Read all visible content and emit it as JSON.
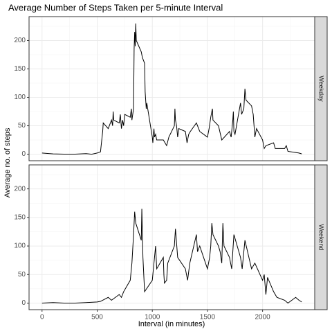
{
  "chart_data": {
    "type": "line",
    "facet": true,
    "title": "Average Number of Steps Taken per 5-minute Interval",
    "xlabel": "Interval (in minutes)",
    "ylabel": "Average no. of steps",
    "xlim": [
      -117.75,
      2472.75
    ],
    "xticks": [
      0,
      500,
      1000,
      1500,
      2000
    ],
    "xminor": [
      250,
      750,
      1250,
      1750,
      2250
    ],
    "ylim": [
      -11.5,
      242
    ],
    "yticks": [
      0,
      50,
      100,
      150,
      200
    ],
    "yminor": [
      25,
      75,
      125,
      175,
      225
    ],
    "grid": true,
    "color": "#000000",
    "series": [
      {
        "name": "Weekday",
        "x": [
          0,
          100,
          200,
          300,
          400,
          450,
          500,
          530,
          550,
          555,
          600,
          620,
          630,
          640,
          645,
          650,
          700,
          710,
          720,
          730,
          740,
          750,
          800,
          810,
          815,
          830,
          835,
          840,
          845,
          850,
          855,
          900,
          910,
          930,
          935,
          940,
          945,
          950,
          1000,
          1005,
          1010,
          1015,
          1020,
          1030,
          1040,
          1100,
          1130,
          1150,
          1200,
          1205,
          1210,
          1220,
          1230,
          1240,
          1300,
          1315,
          1330,
          1345,
          1400,
          1430,
          1500,
          1515,
          1530,
          1545,
          1550,
          1600,
          1630,
          1700,
          1715,
          1730,
          1735,
          1740,
          1750,
          1800,
          1810,
          1830,
          1840,
          1850,
          1900,
          1915,
          1930,
          1945,
          2000,
          2015,
          2030,
          2100,
          2115,
          2200,
          2215,
          2230,
          2300,
          2330,
          2355
        ],
        "values": [
          2,
          0.5,
          0,
          0,
          1,
          0,
          2,
          4,
          40,
          55,
          45,
          55,
          60,
          50,
          75,
          60,
          55,
          70,
          45,
          60,
          50,
          70,
          65,
          80,
          60,
          80,
          185,
          215,
          190,
          230,
          200,
          180,
          170,
          160,
          110,
          95,
          80,
          90,
          30,
          20,
          35,
          45,
          30,
          35,
          25,
          25,
          15,
          30,
          50,
          80,
          60,
          50,
          30,
          45,
          40,
          20,
          35,
          40,
          55,
          40,
          30,
          45,
          65,
          80,
          60,
          50,
          25,
          40,
          30,
          60,
          75,
          40,
          35,
          90,
          70,
          80,
          115,
          95,
          85,
          70,
          30,
          45,
          25,
          10,
          15,
          20,
          10,
          10,
          15,
          5,
          3,
          2,
          0.5
        ]
      },
      {
        "name": "Weekend",
        "x": [
          0,
          100,
          200,
          300,
          400,
          500,
          530,
          600,
          630,
          700,
          720,
          740,
          800,
          815,
          830,
          840,
          850,
          900,
          905,
          910,
          915,
          930,
          1000,
          1030,
          1040,
          1100,
          1105,
          1110,
          1130,
          1140,
          1200,
          1210,
          1230,
          1300,
          1320,
          1340,
          1400,
          1410,
          1430,
          1500,
          1520,
          1530,
          1540,
          1550,
          1600,
          1615,
          1630,
          1640,
          1650,
          1700,
          1720,
          1740,
          1800,
          1815,
          1830,
          1840,
          1900,
          1930,
          2000,
          2015,
          2030,
          2045,
          2100,
          2130,
          2200,
          2230,
          2300,
          2330,
          2355
        ],
        "values": [
          0,
          1,
          0,
          0,
          1,
          2,
          3,
          10,
          5,
          15,
          10,
          20,
          40,
          70,
          120,
          160,
          140,
          110,
          165,
          120,
          80,
          20,
          40,
          100,
          60,
          80,
          50,
          35,
          40,
          70,
          100,
          130,
          80,
          60,
          40,
          70,
          120,
          90,
          100,
          60,
          80,
          100,
          140,
          120,
          100,
          90,
          70,
          140,
          100,
          80,
          60,
          120,
          80,
          60,
          90,
          110,
          60,
          70,
          40,
          50,
          15,
          45,
          20,
          10,
          5,
          0,
          10,
          5,
          2
        ]
      }
    ]
  }
}
